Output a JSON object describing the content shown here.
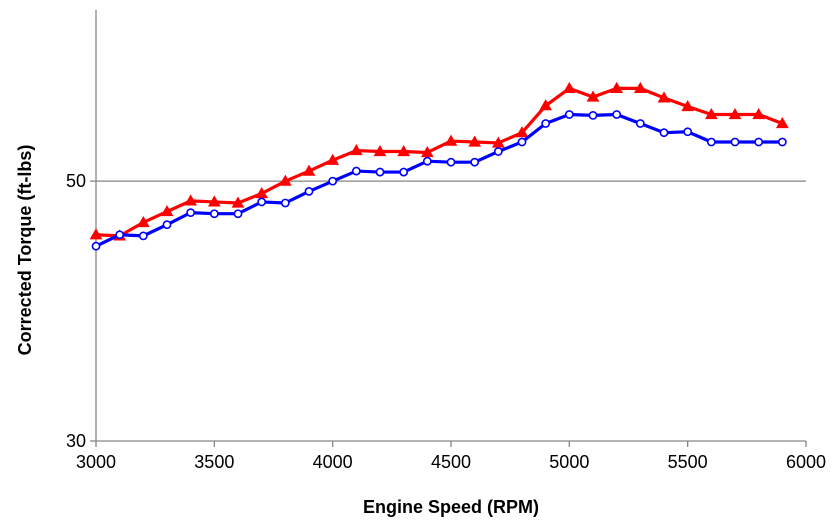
{
  "chart_data": {
    "type": "line",
    "title": "",
    "xlabel": "Engine Speed (RPM)",
    "ylabel": "Corrected Torque (ft-lbs)",
    "xlim": [
      3000,
      6000
    ],
    "ylim": [
      30,
      70
    ],
    "x_ticks": [
      3000,
      3500,
      4000,
      4500,
      5000,
      5500,
      6000
    ],
    "x_tick_labels": [
      "3000",
      "3500",
      "4000",
      "4500",
      "5000",
      "5500",
      "6000"
    ],
    "y_ticks": [
      30,
      50
    ],
    "y_tick_labels": [
      "30",
      "50"
    ],
    "gridlines": [
      50
    ],
    "grid": "horizontal major only",
    "legend": "none",
    "series": [
      {
        "color": "#ff0000",
        "marker": "filled-triangle",
        "x": [
          3000,
          3100,
          3200,
          3300,
          3400,
          3500,
          3600,
          3700,
          3800,
          3900,
          4000,
          4100,
          4200,
          4300,
          4400,
          4500,
          4600,
          4700,
          4800,
          4900,
          5000,
          5100,
          5200,
          5300,
          5400,
          5500,
          5600,
          5700,
          5800,
          5900
        ],
        "y": [
          45.0,
          44.9,
          46.1,
          47.1,
          48.1,
          48.0,
          47.9,
          48.8,
          50.0,
          51.0,
          52.1,
          53.1,
          53.0,
          53.0,
          52.9,
          54.1,
          54.0,
          53.9,
          55.0,
          58.0,
          60.0,
          59.0,
          60.0,
          60.0,
          58.9,
          57.9,
          57.0,
          57.0,
          57.0,
          56.0
        ],
        "ys_note": "",
        "name": ""
      },
      {
        "color": "#0000ff",
        "marker": "open-circle",
        "x": [
          3000,
          3100,
          3200,
          3300,
          3400,
          3500,
          3600,
          3700,
          3800,
          3900,
          4000,
          4100,
          4200,
          4300,
          4400,
          4500,
          4600,
          4700,
          4800,
          4900,
          5000,
          5100,
          5200,
          5300,
          5400,
          5500,
          5600,
          5700,
          5800,
          5900
        ],
        "y": [
          44.0,
          45.0,
          44.9,
          45.9,
          47.0,
          46.9,
          46.9,
          48.0,
          47.9,
          49.0,
          50.0,
          51.0,
          50.9,
          50.9,
          52.0,
          51.9,
          51.9,
          53.0,
          54.0,
          56.0,
          57.0,
          56.9,
          57.0,
          56.0,
          55.0,
          55.1,
          54.0,
          54.0,
          54.0,
          54.0
        ],
        "name": ""
      }
    ]
  }
}
